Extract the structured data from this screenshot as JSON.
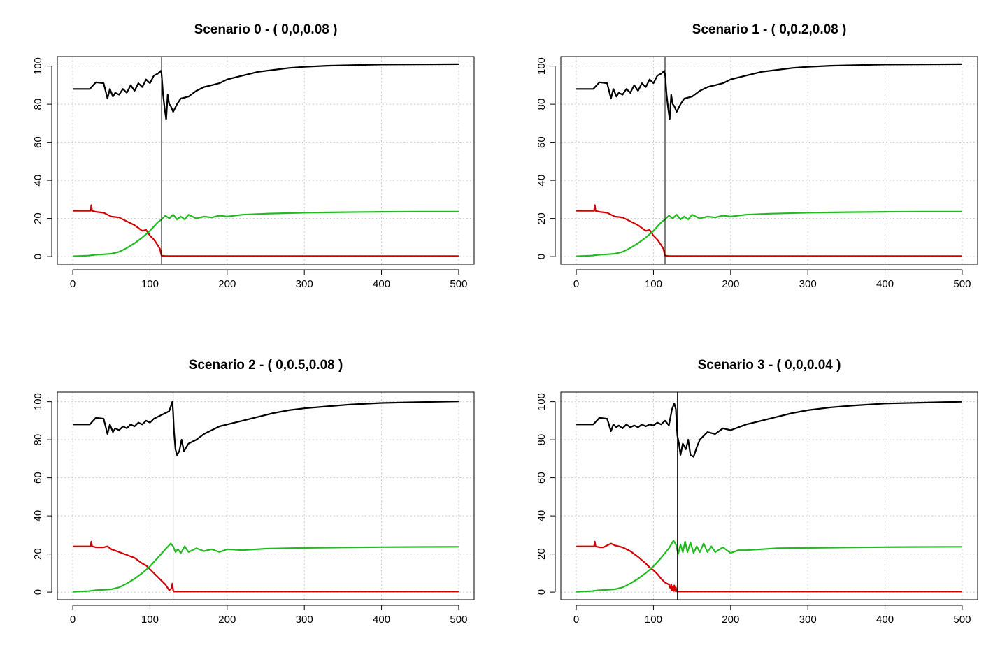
{
  "chart_data": [
    {
      "type": "line",
      "title": "Scenario 0 - ( 0,0,0.08 )",
      "xlabel": "",
      "ylabel": "",
      "xlim": [
        -20,
        520
      ],
      "ylim": [
        -4,
        105
      ],
      "x_ticks": [
        0,
        100,
        200,
        300,
        400,
        500
      ],
      "y_ticks": [
        0,
        20,
        40,
        60,
        80,
        100
      ],
      "grid": true,
      "vline": 115,
      "series": [
        {
          "color": "#000000",
          "x": [
            0,
            20,
            22,
            30,
            40,
            45,
            48,
            52,
            55,
            60,
            65,
            70,
            75,
            80,
            85,
            90,
            95,
            100,
            105,
            110,
            114,
            115,
            117,
            119,
            121,
            123,
            125,
            127,
            130,
            135,
            140,
            150,
            160,
            170,
            180,
            190,
            200,
            220,
            240,
            260,
            280,
            300,
            330,
            360,
            400,
            450,
            500
          ],
          "y": [
            88,
            88,
            88,
            91.5,
            91,
            83,
            88,
            84,
            86,
            85,
            88,
            86,
            90,
            87,
            91,
            89,
            93,
            91,
            95,
            96,
            97.5,
            96,
            85,
            78,
            72,
            85,
            80,
            79,
            76,
            80,
            83,
            84,
            87,
            89,
            90,
            91,
            93,
            95,
            97,
            98,
            99,
            99.6,
            100.2,
            100.5,
            100.8,
            100.9,
            101
          ]
        },
        {
          "color": "#d40000",
          "x": [
            0,
            20,
            23,
            24,
            25,
            30,
            40,
            45,
            50,
            60,
            70,
            80,
            90,
            95,
            100,
            105,
            110,
            113,
            114,
            115,
            120,
            200,
            300,
            400,
            500
          ],
          "y": [
            24,
            24,
            24,
            27,
            24,
            23.5,
            23,
            22,
            21,
            20.5,
            18.5,
            16.5,
            13.5,
            14,
            11,
            9,
            6,
            4,
            2,
            0.5,
            0.3,
            0.3,
            0.3,
            0.3,
            0.3
          ]
        },
        {
          "color": "#22bb22",
          "x": [
            0,
            20,
            30,
            40,
            50,
            60,
            70,
            80,
            90,
            100,
            110,
            115,
            120,
            125,
            130,
            135,
            140,
            145,
            150,
            160,
            170,
            180,
            190,
            200,
            220,
            250,
            300,
            350,
            400,
            450,
            500
          ],
          "y": [
            0.2,
            0.5,
            1,
            1.2,
            1.5,
            2.5,
            4.5,
            7,
            10,
            13.5,
            18,
            19.5,
            21.5,
            20,
            22,
            19.5,
            21,
            19.5,
            22,
            20,
            21,
            20.5,
            21.5,
            21,
            22,
            22.5,
            23,
            23.3,
            23.5,
            23.6,
            23.6
          ]
        }
      ]
    },
    {
      "type": "line",
      "title": "Scenario 1 - ( 0,0.2,0.08 )",
      "xlabel": "",
      "ylabel": "",
      "xlim": [
        -20,
        520
      ],
      "ylim": [
        -4,
        105
      ],
      "x_ticks": [
        0,
        100,
        200,
        300,
        400,
        500
      ],
      "y_ticks": [
        0,
        20,
        40,
        60,
        80,
        100
      ],
      "grid": true,
      "vline": 115,
      "series": [
        {
          "color": "#000000",
          "x": [
            0,
            20,
            22,
            30,
            40,
            45,
            48,
            52,
            55,
            60,
            65,
            70,
            75,
            80,
            85,
            90,
            95,
            100,
            105,
            110,
            114,
            115,
            117,
            119,
            121,
            123,
            125,
            127,
            130,
            135,
            140,
            150,
            160,
            170,
            180,
            190,
            200,
            220,
            240,
            260,
            280,
            300,
            330,
            360,
            400,
            450,
            500
          ],
          "y": [
            88,
            88,
            88,
            91.5,
            91,
            83,
            88,
            84,
            86,
            85,
            88,
            86,
            90,
            87,
            91,
            89,
            93,
            91,
            95,
            96,
            97.5,
            96,
            85,
            78,
            72,
            85,
            80,
            79,
            76,
            80,
            83,
            84,
            87,
            89,
            90,
            91,
            93,
            95,
            97,
            98,
            99,
            99.6,
            100.2,
            100.5,
            100.8,
            100.9,
            101
          ]
        },
        {
          "color": "#d40000",
          "x": [
            0,
            20,
            23,
            24,
            25,
            30,
            40,
            45,
            50,
            60,
            70,
            80,
            90,
            95,
            100,
            105,
            110,
            113,
            114,
            115,
            120,
            200,
            300,
            400,
            500
          ],
          "y": [
            24,
            24,
            24,
            27,
            24,
            23.5,
            23,
            22,
            21,
            20.5,
            18.5,
            16.5,
            13.5,
            14,
            11,
            9,
            6,
            4,
            2,
            0.5,
            0.3,
            0.3,
            0.3,
            0.3,
            0.3
          ]
        },
        {
          "color": "#22bb22",
          "x": [
            0,
            20,
            30,
            40,
            50,
            60,
            70,
            80,
            90,
            100,
            110,
            115,
            120,
            125,
            130,
            135,
            140,
            145,
            150,
            160,
            170,
            180,
            190,
            200,
            220,
            250,
            300,
            350,
            400,
            450,
            500
          ],
          "y": [
            0.2,
            0.5,
            1,
            1.2,
            1.5,
            2.5,
            4.5,
            7,
            10,
            13.5,
            18,
            19.5,
            21.5,
            20,
            22,
            19.5,
            21,
            19.5,
            22,
            20,
            21,
            20.5,
            21.5,
            21,
            22,
            22.5,
            23,
            23.3,
            23.5,
            23.6,
            23.6
          ]
        }
      ]
    },
    {
      "type": "line",
      "title": "Scenario 2 - ( 0,0.5,0.08 )",
      "xlabel": "",
      "ylabel": "",
      "xlim": [
        -20,
        520
      ],
      "ylim": [
        -4,
        105
      ],
      "x_ticks": [
        0,
        100,
        200,
        300,
        400,
        500
      ],
      "y_ticks": [
        0,
        20,
        40,
        60,
        80,
        100
      ],
      "grid": true,
      "vline": 130,
      "series": [
        {
          "color": "#000000",
          "x": [
            0,
            20,
            22,
            30,
            40,
            45,
            48,
            52,
            55,
            60,
            65,
            70,
            75,
            80,
            85,
            90,
            95,
            100,
            105,
            110,
            115,
            120,
            125,
            129,
            130,
            131,
            133,
            135,
            138,
            141,
            144,
            147,
            150,
            160,
            170,
            180,
            190,
            200,
            220,
            240,
            260,
            280,
            300,
            330,
            360,
            400,
            450,
            500
          ],
          "y": [
            88,
            88,
            88,
            91.5,
            91,
            83,
            88,
            84,
            86,
            85,
            87,
            86,
            88,
            87,
            89,
            88,
            90,
            89,
            91,
            92,
            93,
            94,
            95,
            100,
            94,
            85,
            75,
            72,
            74,
            80,
            74,
            76,
            78,
            80,
            83,
            85,
            87,
            88,
            90,
            92,
            94,
            95.5,
            96.5,
            97.5,
            98.5,
            99.3,
            99.8,
            100.2
          ]
        },
        {
          "color": "#d40000",
          "x": [
            0,
            20,
            23,
            24,
            25,
            30,
            40,
            45,
            50,
            60,
            70,
            80,
            90,
            95,
            100,
            105,
            110,
            115,
            120,
            125,
            128,
            129,
            130,
            131,
            200,
            300,
            400,
            500
          ],
          "y": [
            24,
            24,
            24,
            26.5,
            24,
            23.5,
            23.5,
            24,
            22.5,
            21,
            19.5,
            18,
            15,
            14,
            12,
            10,
            8,
            6,
            4,
            1,
            2,
            4.5,
            1,
            0.3,
            0.3,
            0.3,
            0.3,
            0.3
          ]
        },
        {
          "color": "#22bb22",
          "x": [
            0,
            20,
            30,
            40,
            50,
            60,
            70,
            80,
            90,
            100,
            110,
            120,
            127,
            130,
            133,
            136,
            140,
            145,
            150,
            155,
            160,
            170,
            180,
            190,
            200,
            220,
            250,
            300,
            350,
            400,
            450,
            500
          ],
          "y": [
            0.2,
            0.5,
            1,
            1.2,
            1.5,
            2.5,
            4.5,
            7,
            10,
            13.5,
            18,
            22.5,
            25.5,
            24,
            21,
            22.5,
            20.5,
            24,
            21,
            22,
            23,
            21.5,
            22.5,
            21,
            22.5,
            22,
            22.8,
            23.2,
            23.4,
            23.6,
            23.7,
            23.8
          ]
        }
      ]
    },
    {
      "type": "line",
      "title": "Scenario 3 - ( 0,0,0.04 )",
      "xlabel": "",
      "ylabel": "",
      "xlim": [
        -20,
        520
      ],
      "ylim": [
        -4,
        105
      ],
      "x_ticks": [
        0,
        100,
        200,
        300,
        400,
        500
      ],
      "y_ticks": [
        0,
        20,
        40,
        60,
        80,
        100
      ],
      "grid": true,
      "vline": 131,
      "series": [
        {
          "color": "#000000",
          "x": [
            0,
            20,
            22,
            30,
            40,
            45,
            48,
            52,
            55,
            60,
            65,
            70,
            75,
            80,
            85,
            90,
            95,
            100,
            105,
            110,
            115,
            120,
            124,
            127,
            129,
            130,
            131,
            133,
            135,
            138,
            142,
            145,
            148,
            152,
            156,
            160,
            170,
            180,
            190,
            200,
            220,
            240,
            260,
            280,
            300,
            330,
            360,
            400,
            450,
            500
          ],
          "y": [
            88,
            88,
            88,
            91.5,
            91,
            84.5,
            88,
            86.5,
            87.5,
            86,
            88,
            86.5,
            87.5,
            86.5,
            88,
            87,
            88,
            87.5,
            89,
            88,
            90,
            87.5,
            96,
            99,
            96,
            88,
            82,
            78,
            72,
            78,
            75,
            80,
            72,
            71,
            76,
            80,
            84,
            83,
            86,
            85,
            88,
            90,
            92,
            94,
            95.5,
            97,
            98,
            99,
            99.5,
            100
          ]
        },
        {
          "color": "#d40000",
          "x": [
            0,
            20,
            23,
            24,
            25,
            30,
            35,
            40,
            45,
            50,
            60,
            70,
            80,
            90,
            95,
            100,
            105,
            110,
            115,
            120,
            122,
            123,
            124,
            125,
            126,
            127,
            128,
            129,
            130,
            131,
            132,
            200,
            300,
            400,
            500
          ],
          "y": [
            24,
            24,
            24,
            26.5,
            24,
            23.5,
            23.5,
            24.5,
            25.5,
            24.5,
            23.5,
            21.5,
            18.5,
            15,
            13,
            11.5,
            9.5,
            7,
            5,
            4,
            2,
            4,
            1,
            3,
            0.5,
            3.5,
            0.5,
            2.5,
            0.5,
            0.3,
            0.3,
            0.3,
            0.3,
            0.3,
            0.3
          ]
        },
        {
          "color": "#22bb22",
          "x": [
            0,
            20,
            30,
            40,
            50,
            60,
            70,
            80,
            90,
            100,
            110,
            120,
            126,
            129,
            132,
            135,
            138,
            141,
            144,
            148,
            152,
            156,
            160,
            165,
            170,
            175,
            180,
            190,
            200,
            210,
            220,
            240,
            260,
            300,
            350,
            400,
            450,
            500
          ],
          "y": [
            0.2,
            0.5,
            1,
            1.2,
            1.5,
            2.5,
            4.5,
            7,
            10,
            13.5,
            18,
            23,
            27,
            25,
            20,
            25,
            21,
            26.5,
            21,
            26,
            20.5,
            24,
            21,
            25.5,
            21,
            24,
            21,
            23.5,
            20.5,
            22,
            22,
            22.5,
            23,
            23.2,
            23.4,
            23.6,
            23.7,
            23.8
          ]
        }
      ]
    }
  ]
}
